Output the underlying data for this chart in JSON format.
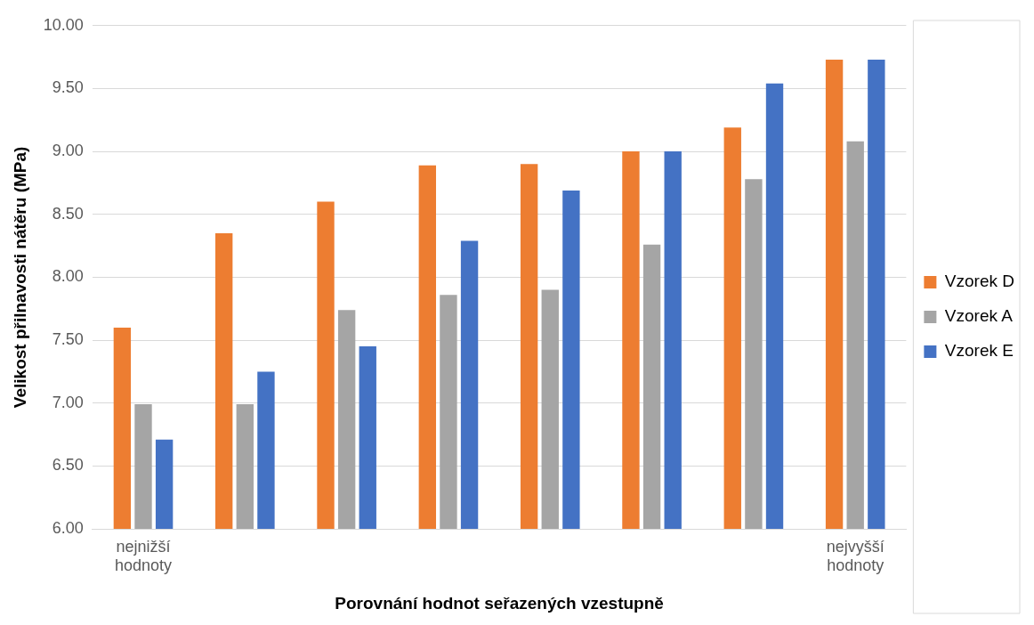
{
  "chart_data": {
    "type": "bar",
    "xlabel": "Porovnání hodnot seřazených vzestupně",
    "ylabel": "Velikost přilnavosti nátěru (MPa)",
    "categories": [
      "nejnižší hodnoty",
      null,
      null,
      null,
      null,
      null,
      null,
      "nejvyšší hodnoty"
    ],
    "series": [
      {
        "name": "Vzorek D",
        "color": "#ed7d31",
        "values": [
          7.6,
          8.35,
          8.6,
          8.89,
          8.9,
          9.0,
          9.19,
          9.73
        ]
      },
      {
        "name": "Vzorek A",
        "color": "#a5a5a5",
        "values": [
          6.99,
          6.99,
          7.74,
          7.86,
          7.9,
          8.26,
          8.78,
          9.08
        ]
      },
      {
        "name": "Vzorek E",
        "color": "#4472c4",
        "values": [
          6.71,
          7.25,
          7.45,
          8.29,
          8.69,
          9.0,
          9.54,
          9.73
        ]
      }
    ],
    "ylim": [
      6,
      10
    ],
    "yticks": [
      {
        "value": 6,
        "label": "6.00"
      },
      {
        "value": 6.5,
        "label": "6.50"
      },
      {
        "value": 7,
        "label": "7.00"
      },
      {
        "value": 7.5,
        "label": "7.50"
      },
      {
        "value": 8,
        "label": "8.00"
      },
      {
        "value": 8.5,
        "label": "8.50"
      },
      {
        "value": 9,
        "label": "9.00"
      },
      {
        "value": 9.5,
        "label": "9.50"
      },
      {
        "value": 10,
        "label": "10.00"
      }
    ],
    "grid": "y",
    "legend": "right"
  }
}
